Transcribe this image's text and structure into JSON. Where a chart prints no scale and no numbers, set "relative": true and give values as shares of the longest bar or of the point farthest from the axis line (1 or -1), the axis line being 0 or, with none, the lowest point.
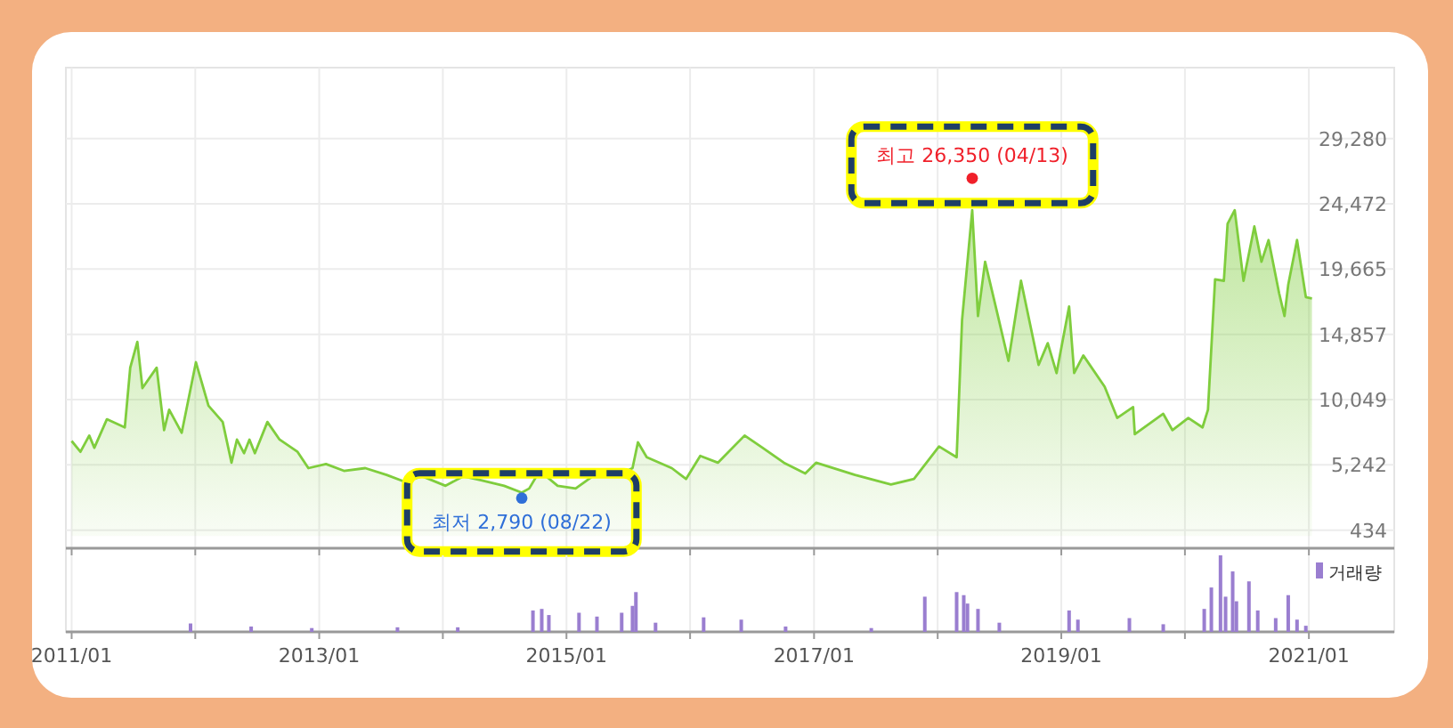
{
  "chart_data": [
    {
      "type": "area",
      "color": "#7fcd3d",
      "x": [
        "2011-01-01",
        "2011-01-27",
        "2011-02-22",
        "2011-03-09",
        "2011-04-15",
        "2011-06-07",
        "2011-06-23",
        "2011-07-14",
        "2011-07-29",
        "2011-09-09",
        "2011-10-01",
        "2011-10-16",
        "2011-11-22",
        "2012-01-03",
        "2012-02-09",
        "2012-03-22",
        "2012-04-17",
        "2012-05-03",
        "2012-05-24",
        "2012-06-09",
        "2012-06-25",
        "2012-08-01",
        "2012-09-06",
        "2012-10-29",
        "2012-11-30",
        "2013-01-21",
        "2013-03-15",
        "2013-05-17",
        "2013-07-19",
        "2013-09-10",
        "2013-11-01",
        "2014-01-09",
        "2014-03-02",
        "2014-04-24",
        "2014-07-01",
        "2014-08-22",
        "2014-09-13",
        "2014-10-14",
        "2014-12-06",
        "2015-01-28",
        "2015-04-16",
        "2015-05-23",
        "2015-07-15",
        "2015-07-31",
        "2015-08-26",
        "2015-11-08",
        "2015-12-20",
        "2016-01-31",
        "2016-03-23",
        "2016-06-10",
        "2016-08-02",
        "2016-10-04",
        "2016-12-06",
        "2017-01-07",
        "2017-05-02",
        "2017-08-16",
        "2017-10-23",
        "2018-01-05",
        "2018-02-26",
        "2018-03-14",
        "2018-04-13",
        "2018-04-30",
        "2018-05-21",
        "2018-06-27",
        "2018-07-29",
        "2018-09-04",
        "2018-10-26",
        "2018-11-22",
        "2018-12-18",
        "2019-01-24",
        "2019-02-08",
        "2019-03-07",
        "2019-05-09",
        "2019-06-15",
        "2019-08-01",
        "2019-08-06",
        "2019-10-29",
        "2019-11-25",
        "2020-01-11",
        "2020-02-22",
        "2020-03-09",
        "2020-03-30",
        "2020-04-25",
        "2020-05-06",
        "2020-05-27",
        "2020-06-22",
        "2020-07-24",
        "2020-08-14",
        "2020-09-04",
        "2020-10-05",
        "2020-10-21",
        "2020-11-01",
        "2020-11-27",
        "2020-12-23",
        "2021-01-10"
      ],
      "values": [
        7000,
        6200,
        7400,
        6500,
        8600,
        8000,
        12400,
        14300,
        10900,
        12400,
        7800,
        9300,
        7600,
        12800,
        9600,
        8400,
        5400,
        7100,
        6100,
        7100,
        6100,
        8400,
        7100,
        6200,
        5000,
        5300,
        4800,
        5000,
        4500,
        4000,
        4400,
        3700,
        4400,
        4100,
        3700,
        3200,
        3500,
        4800,
        3700,
        3500,
        4900,
        4400,
        5000,
        6900,
        5800,
        5000,
        4200,
        5900,
        5400,
        7400,
        6500,
        5400,
        4600,
        5400,
        4500,
        3800,
        4200,
        6600,
        5800,
        15900,
        24000,
        16200,
        20200,
        16300,
        12900,
        18800,
        12600,
        14200,
        12000,
        16900,
        12000,
        13300,
        11000,
        8700,
        9500,
        7500,
        9000,
        7800,
        8700,
        8000,
        9300,
        18900,
        18800,
        23000,
        24000,
        18800,
        22800,
        20200,
        21800,
        17900,
        16200,
        18500,
        21800,
        17600,
        17500
      ],
      "xlim": [
        "2010-12-15",
        "2021-09-10"
      ],
      "ylim": [
        -900,
        34500
      ],
      "yticks": [
        {
          "value": 434,
          "label": "434"
        },
        {
          "value": 5242,
          "label": "5,242"
        },
        {
          "value": 10049,
          "label": "10,049"
        },
        {
          "value": 14857,
          "label": "14,857"
        },
        {
          "value": 19665,
          "label": "19,665"
        },
        {
          "value": 24472,
          "label": "24,472"
        },
        {
          "value": 29280,
          "label": "29,280"
        }
      ],
      "xticks": [
        {
          "value": "2011-01-01",
          "label": null
        },
        {
          "value": "2012-01-01",
          "label": null
        },
        {
          "value": "2013-01-01",
          "label": null
        },
        {
          "value": "2014-01-01",
          "label": null
        },
        {
          "value": "2015-01-01",
          "label": null
        },
        {
          "value": "2016-01-01",
          "label": null
        },
        {
          "value": "2017-01-01",
          "label": null
        },
        {
          "value": "2018-01-01",
          "label": null
        },
        {
          "value": "2019-01-01",
          "label": null
        },
        {
          "value": "2020-01-01",
          "label": null
        },
        {
          "value": "2021-01-01",
          "label": null
        }
      ],
      "tick_labels": "y",
      "grid": true,
      "annotations": [
        {
          "text": "최고 26,350 (04/13)",
          "x": "2018-04-13",
          "y": 26350
        },
        {
          "text": "최저 2,790 (08/22)",
          "x": "2014-08-22",
          "y": 2790
        }
      ]
    },
    {
      "type": "bar",
      "relative": true,
      "x": [
        "2011-12-18",
        "2012-06-14",
        "2012-12-10",
        "2013-08-20",
        "2014-02-14",
        "2014-09-24",
        "2014-10-20",
        "2014-11-10",
        "2015-02-07",
        "2015-04-01",
        "2015-06-13",
        "2015-07-15",
        "2015-07-25",
        "2015-09-21",
        "2016-02-10",
        "2016-05-31",
        "2016-10-09",
        "2017-06-19",
        "2017-11-24",
        "2018-02-26",
        "2018-03-19",
        "2018-03-30",
        "2018-04-30",
        "2018-07-02",
        "2019-01-24",
        "2019-02-19",
        "2019-07-21",
        "2019-10-29",
        "2020-02-27",
        "2020-03-19",
        "2020-04-15",
        "2020-04-30",
        "2020-05-21",
        "2020-06-01",
        "2020-07-08",
        "2020-08-03",
        "2020-09-25",
        "2020-11-01",
        "2020-11-27",
        "2020-12-23"
      ],
      "series": [
        {
          "name": "거래량",
          "color": "#9a7ed0",
          "values": [
            0.11,
            0.07,
            0.05,
            0.06,
            0.06,
            0.28,
            0.3,
            0.22,
            0.25,
            0.2,
            0.25,
            0.34,
            0.52,
            0.12,
            0.19,
            0.16,
            0.07,
            0.05,
            0.46,
            0.52,
            0.48,
            0.37,
            0.3,
            0.12,
            0.28,
            0.16,
            0.18,
            0.1,
            0.3,
            0.58,
            1,
            0.46,
            0.79,
            0.4,
            0.66,
            0.28,
            0.18,
            0.48,
            0.16,
            0.08
          ]
        }
      ],
      "xlim": [
        "2010-12-15",
        "2021-09-10"
      ],
      "xticks": [
        {
          "value": "2011-01-01",
          "label": "2011/01"
        },
        {
          "value": "2012-01-01",
          "label": null
        },
        {
          "value": "2013-01-01",
          "label": "2013/01"
        },
        {
          "value": "2014-01-01",
          "label": null
        },
        {
          "value": "2015-01-01",
          "label": "2015/01"
        },
        {
          "value": "2016-01-01",
          "label": null
        },
        {
          "value": "2017-01-01",
          "label": "2017/01"
        },
        {
          "value": "2018-01-01",
          "label": null
        },
        {
          "value": "2019-01-01",
          "label": "2019/01"
        },
        {
          "value": "2020-01-01",
          "label": null
        },
        {
          "value": "2021-01-01",
          "label": "2021/01"
        }
      ],
      "tick_labels": "x",
      "grid": "x",
      "legend": "top right"
    }
  ]
}
